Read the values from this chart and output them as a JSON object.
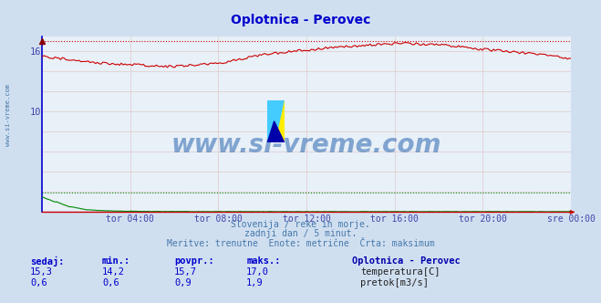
{
  "title": "Oplotnica - Perovec",
  "title_color": "#0000cc",
  "bg_color": "#d0dff0",
  "plot_bg_color": "#e8f0f8",
  "x_tick_labels": [
    "tor 04:00",
    "tor 08:00",
    "tor 12:00",
    "tor 16:00",
    "tor 20:00",
    "sre 00:00"
  ],
  "x_tick_positions": [
    0.1667,
    0.3333,
    0.5,
    0.6667,
    0.8333,
    1.0
  ],
  "y_ticks_shown": [
    10,
    16
  ],
  "ylim": [
    0,
    17.5
  ],
  "temp_color": "#cc0000",
  "flow_color": "#008800",
  "height_color": "#0000cc",
  "max_temp": 17.0,
  "max_flow": 1.9,
  "watermark_text": "www.si-vreme.com",
  "watermark_color": "#1a5aaa",
  "info_line1": "Slovenija / reke in morje.",
  "info_line2": "zadnji dan / 5 minut.",
  "info_line3": "Meritve: trenutne  Enote: metrične  Črta: maksimum",
  "info_color": "#4477aa",
  "legend_title": "Oplotnica - Perovec",
  "legend_title_color": "#0000aa",
  "stat_headers": [
    "sedaj:",
    "min.:",
    "povpr.:",
    "maks.:"
  ],
  "stat_color": "#0000cc",
  "temp_stats": [
    "15,3",
    "14,2",
    "15,7",
    "17,0"
  ],
  "flow_stats": [
    "0,6",
    "0,6",
    "0,9",
    "1,9"
  ],
  "temp_label": "temperatura[C]",
  "flow_label": "pretok[m3/s]",
  "left_label": "www.si-vreme.com"
}
